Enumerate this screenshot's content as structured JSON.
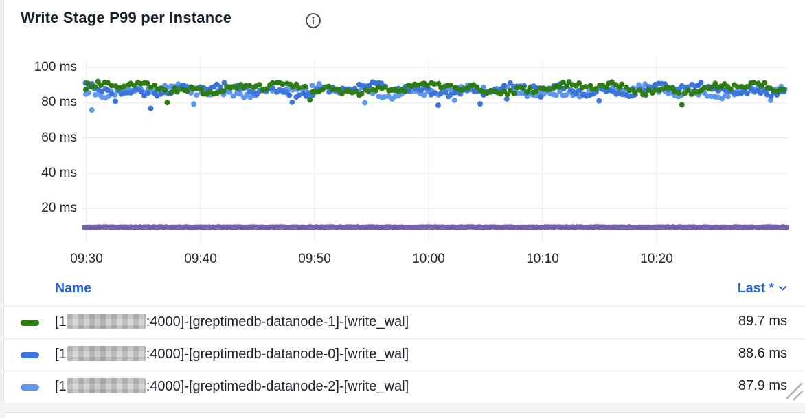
{
  "panel": {
    "title": "Write Stage P99 per Instance"
  },
  "chart_data": {
    "type": "scatter",
    "title": "Write Stage P99 per Instance",
    "xlabel": "",
    "ylabel": "",
    "x_ticks": [
      "09:30",
      "09:40",
      "09:50",
      "10:00",
      "10:10",
      "10:20"
    ],
    "y_ticks": [
      "100 ms",
      "80 ms",
      "60 ms",
      "40 ms",
      "20 ms"
    ],
    "y_tick_values": [
      100,
      80,
      60,
      40,
      20
    ],
    "ylim": [
      0,
      105
    ],
    "grid": true,
    "legend_position": "bottom-table",
    "series": [
      {
        "name": "[1█:4000]-[greptimedb-datanode-1]-[write_wal]",
        "color": "#2e7d12",
        "style": "points",
        "band_center_ms": 88.2,
        "band_spread_ms": 4.2,
        "last": "89.7 ms"
      },
      {
        "name": "[1█:4000]-[greptimedb-datanode-0]-[write_wal]",
        "color": "#3b74db",
        "style": "points",
        "band_center_ms": 87.3,
        "band_spread_ms": 4.2,
        "last": "88.6 ms"
      },
      {
        "name": "[1█:4000]-[greptimedb-datanode-2]-[write_wal]",
        "color": "#5e97f0",
        "style": "points",
        "band_center_ms": 86.5,
        "band_spread_ms": 4.2,
        "last": "87.9 ms"
      },
      {
        "name": "",
        "color": "#7560aa",
        "style": "points",
        "band_center_ms": 9.3,
        "band_spread_ms": 0.8,
        "last": ""
      }
    ]
  },
  "legend": {
    "columns": {
      "name": "Name",
      "last": "Last *"
    },
    "rows": [
      {
        "color": "#2e7d12",
        "prefix": "[1",
        "redacted": true,
        "suffix": ":4000]-[greptimedb-datanode-1]-[write_wal]",
        "last": "89.7 ms"
      },
      {
        "color": "#3b74db",
        "prefix": "[1",
        "redacted": true,
        "suffix": ":4000]-[greptimedb-datanode-0]-[write_wal]",
        "last": "88.6 ms"
      },
      {
        "color": "#5e97f0",
        "prefix": "[1",
        "redacted": true,
        "suffix": ":4000]-[greptimedb-datanode-2]-[write_wal]",
        "last": "87.9 ms"
      }
    ]
  },
  "colors": {
    "link_blue": "#2263e6",
    "grid_line": "#ebecee",
    "text_dark": "#1b212c"
  }
}
